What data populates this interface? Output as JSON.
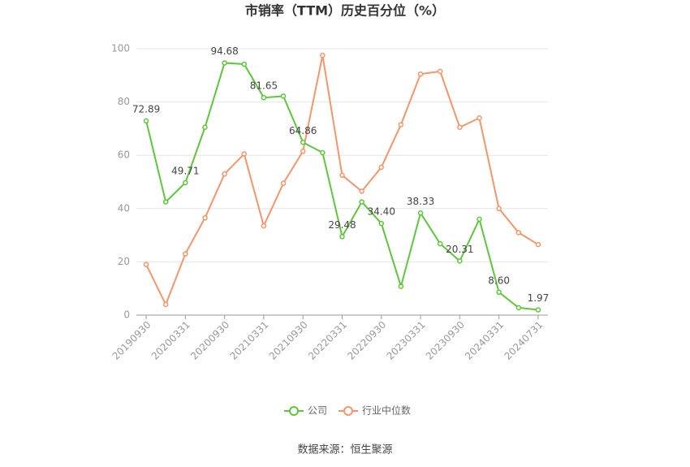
{
  "chart_data": {
    "type": "line",
    "title": "市销率（TTM）历史百分位（%）",
    "categories": [
      "20190930",
      null,
      "20200331",
      null,
      "20200930",
      null,
      "20210331",
      null,
      "20210930",
      null,
      "20220331",
      null,
      "20220930",
      null,
      "20230331",
      null,
      "20230930",
      null,
      "20240331",
      null,
      "20240731"
    ],
    "series": [
      {
        "name": "公司",
        "color": "#5ec63a",
        "values": [
          72.89,
          42.5,
          49.71,
          70.5,
          94.68,
          94.2,
          81.65,
          82.2,
          64.86,
          61,
          29.48,
          42.5,
          34.4,
          10.8,
          38.33,
          26.8,
          20.31,
          36,
          8.6,
          2.8,
          1.97
        ],
        "value_labels": [
          "72.89",
          null,
          "49.71",
          null,
          "94.68",
          null,
          "81.65",
          null,
          "64.86",
          null,
          "29.48",
          null,
          "34.40",
          null,
          "38.33",
          null,
          "20.31",
          null,
          "8.60",
          null,
          "1.97"
        ]
      },
      {
        "name": "行业中位数",
        "color": "#f4956b",
        "values": [
          19,
          4,
          23,
          36.5,
          53,
          60.5,
          33.5,
          49.5,
          61.5,
          97.5,
          52.5,
          46.5,
          55.5,
          71.5,
          90.5,
          91.5,
          70.5,
          74,
          40,
          31,
          26.5
        ]
      }
    ],
    "ylim": [
      0,
      100
    ],
    "yticks": [
      0,
      20,
      40,
      60,
      80,
      100
    ],
    "grid": true,
    "legend": "bottom",
    "source": "数据来源：恒生聚源"
  }
}
